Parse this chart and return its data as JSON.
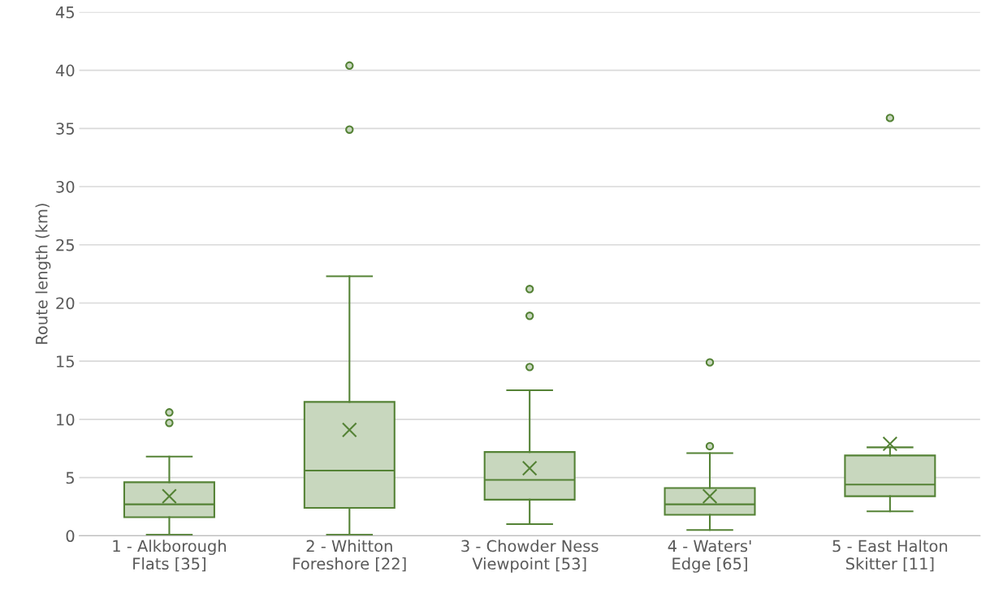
{
  "chart_data": {
    "type": "box",
    "ylabel": "Route length (km)",
    "categories": [
      "1 - Alkborough\nFlats [35]",
      "2 - Whitton\nForeshore [22]",
      "3 - Chowder Ness\nViewpoint [53]",
      "4 - Waters'\nEdge [65]",
      "5 - East Halton\nSkitter [11]"
    ],
    "series": [
      {
        "color": "#548235",
        "boxes": [
          {
            "low": 0.1,
            "q1": 1.6,
            "median": 2.7,
            "q3": 4.6,
            "high": 6.8,
            "mean": 3.4,
            "outliers": [
              9.7,
              10.6
            ]
          },
          {
            "low": 0.1,
            "q1": 2.4,
            "median": 5.6,
            "q3": 11.5,
            "high": 22.3,
            "mean": 9.1,
            "outliers": [
              34.9,
              40.4
            ]
          },
          {
            "low": 1.0,
            "q1": 3.1,
            "median": 4.8,
            "q3": 7.2,
            "high": 12.5,
            "mean": 5.8,
            "outliers": [
              14.5,
              18.9,
              21.2
            ]
          },
          {
            "low": 0.5,
            "q1": 1.8,
            "median": 2.7,
            "q3": 4.1,
            "high": 7.1,
            "mean": 3.4,
            "outliers": [
              7.7,
              14.9
            ]
          },
          {
            "low": 2.1,
            "q1": 3.4,
            "median": 4.4,
            "q3": 6.9,
            "high": 7.6,
            "mean": 7.9,
            "outliers": [
              35.9
            ]
          }
        ]
      }
    ],
    "ylim": [
      0,
      45
    ],
    "yticks": [
      0,
      5,
      10,
      15,
      20,
      25,
      30,
      35,
      40,
      45
    ],
    "grid": "y",
    "legend": false
  }
}
